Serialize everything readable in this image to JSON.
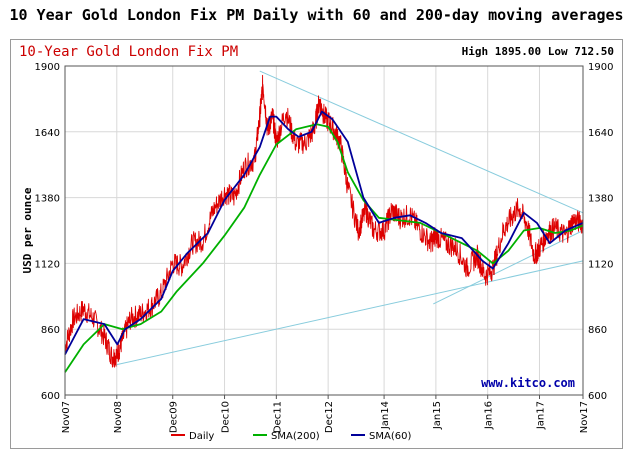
{
  "page_title": "10 Year Gold London Fix PM Daily with 60 and 200-day moving averages",
  "chart_data": {
    "type": "line",
    "title": "10-Year Gold London Fix PM",
    "high_low": "High 1895.00 Low 712.50",
    "ylabel": "USD per ounce",
    "xlabel": "",
    "ylim": [
      600,
      1900
    ],
    "yticks": [
      600,
      860,
      1120,
      1380,
      1640,
      1900
    ],
    "grid": true,
    "watermark": "www.kitco.com",
    "legend_position": "bottom",
    "x_tick_labels": [
      "Nov07",
      "Nov08",
      "Dec09",
      "Dec10",
      "Dec11",
      "Dec12",
      "Jan14",
      "Jan15",
      "Jan16",
      "Jan17",
      "Nov17"
    ],
    "x_ticks_years": [
      2007.84,
      2008.84,
      2009.92,
      2010.92,
      2011.92,
      2012.92,
      2014.0,
      2015.0,
      2016.0,
      2017.0,
      2017.84
    ],
    "xlim": [
      2007.84,
      2017.84
    ],
    "series": [
      {
        "name": "Daily",
        "color": "#dd0000",
        "x": [
          2007.84,
          2008.0,
          2008.2,
          2008.4,
          2008.6,
          2008.75,
          2008.85,
          2008.95,
          2009.1,
          2009.3,
          2009.5,
          2009.7,
          2009.92,
          2010.1,
          2010.3,
          2010.5,
          2010.7,
          2010.92,
          2011.1,
          2011.3,
          2011.5,
          2011.6,
          2011.66,
          2011.75,
          2011.85,
          2011.92,
          2012.1,
          2012.3,
          2012.5,
          2012.65,
          2012.75,
          2012.85,
          2013.0,
          2013.15,
          2013.3,
          2013.5,
          2013.65,
          2013.8,
          2014.0,
          2014.15,
          2014.3,
          2014.5,
          2014.7,
          2014.9,
          2015.0,
          2015.2,
          2015.4,
          2015.6,
          2015.8,
          2015.95,
          2016.1,
          2016.3,
          2016.45,
          2016.6,
          2016.75,
          2016.9,
          2017.0,
          2017.15,
          2017.3,
          2017.5,
          2017.65,
          2017.84
        ],
        "values": [
          790,
          900,
          940,
          900,
          830,
          750,
          760,
          820,
          900,
          920,
          950,
          1000,
          1120,
          1110,
          1200,
          1210,
          1330,
          1400,
          1380,
          1500,
          1530,
          1700,
          1830,
          1650,
          1700,
          1600,
          1720,
          1590,
          1600,
          1650,
          1760,
          1700,
          1660,
          1600,
          1420,
          1250,
          1330,
          1250,
          1250,
          1330,
          1300,
          1310,
          1250,
          1200,
          1230,
          1200,
          1180,
          1100,
          1150,
          1070,
          1100,
          1250,
          1300,
          1340,
          1280,
          1150,
          1180,
          1240,
          1260,
          1230,
          1290,
          1280
        ]
      },
      {
        "name": "SMA(200)",
        "color": "#00b000",
        "x": [
          2007.84,
          2008.2,
          2008.6,
          2008.95,
          2009.3,
          2009.7,
          2010.0,
          2010.5,
          2010.92,
          2011.3,
          2011.6,
          2011.92,
          2012.3,
          2012.7,
          2012.92,
          2013.1,
          2013.3,
          2013.6,
          2013.9,
          2014.3,
          2014.7,
          2015.0,
          2015.4,
          2015.8,
          2016.1,
          2016.4,
          2016.7,
          2017.0,
          2017.3,
          2017.6,
          2017.84
        ],
        "values": [
          690,
          800,
          880,
          860,
          880,
          930,
          1010,
          1120,
          1230,
          1340,
          1470,
          1590,
          1650,
          1670,
          1660,
          1600,
          1480,
          1370,
          1300,
          1290,
          1280,
          1250,
          1210,
          1170,
          1120,
          1170,
          1250,
          1260,
          1240,
          1250,
          1270
        ]
      },
      {
        "name": "SMA(60)",
        "color": "#000099",
        "x": [
          2007.84,
          2008.2,
          2008.6,
          2008.85,
          2009.0,
          2009.3,
          2009.7,
          2009.92,
          2010.2,
          2010.6,
          2010.92,
          2011.3,
          2011.6,
          2011.8,
          2011.92,
          2012.15,
          2012.35,
          2012.6,
          2012.8,
          2013.0,
          2013.3,
          2013.6,
          2013.9,
          2014.2,
          2014.5,
          2014.8,
          2015.1,
          2015.5,
          2015.9,
          2016.1,
          2016.4,
          2016.7,
          2016.95,
          2017.2,
          2017.5,
          2017.84
        ],
        "values": [
          760,
          900,
          880,
          800,
          860,
          900,
          980,
          1090,
          1160,
          1240,
          1370,
          1470,
          1580,
          1700,
          1700,
          1650,
          1620,
          1640,
          1720,
          1690,
          1600,
          1380,
          1280,
          1300,
          1310,
          1280,
          1240,
          1220,
          1130,
          1100,
          1200,
          1320,
          1280,
          1200,
          1250,
          1280
        ]
      }
    ],
    "annotations": [
      {
        "type": "trendline",
        "color": "#88ccdd",
        "from": [
          2011.6,
          1880
        ],
        "to": [
          2017.84,
          1320
        ]
      },
      {
        "type": "trendline",
        "color": "#88ccdd",
        "from": [
          2008.84,
          720
        ],
        "to": [
          2017.84,
          1130
        ]
      },
      {
        "type": "trendline",
        "color": "#88ccdd",
        "from": [
          2014.95,
          960
        ],
        "to": [
          2017.84,
          1250
        ]
      }
    ]
  }
}
